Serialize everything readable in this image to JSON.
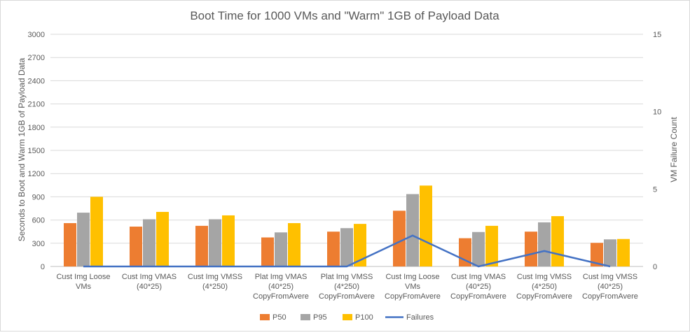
{
  "chart_data": {
    "type": "bar",
    "title": "Boot Time for 1000 VMs and \"Warm\" 1GB of Payload Data",
    "ylabel": "Seconds to Boot and Warm 1GB of Payload Data",
    "y2label": "VM Failure Count",
    "ylim": [
      0,
      3000
    ],
    "y2lim": [
      0,
      15
    ],
    "yticks": [
      "0",
      "300",
      "600",
      "900",
      "1200",
      "1500",
      "1800",
      "2100",
      "2400",
      "2700",
      "3000"
    ],
    "y2ticks": [
      "0",
      "5",
      "10",
      "15"
    ],
    "grid": true,
    "legend_position": "bottom",
    "categories": [
      [
        "Cust Img Loose",
        "VMs"
      ],
      [
        "Cust Img VMAS",
        "(40*25)"
      ],
      [
        "Cust Img VMSS",
        "(4*250)"
      ],
      [
        "Plat Img VMAS",
        "(40*25)",
        "CopyFromAvere"
      ],
      [
        "Plat Img VMSS",
        "(4*250)",
        "CopyFromAvere"
      ],
      [
        "Cust Img Loose",
        "VMs",
        "CopyFromAvere"
      ],
      [
        "Cust Img VMAS",
        "(40*25)",
        "CopyFromAvere"
      ],
      [
        "Cust Img VMSS",
        "(4*250)",
        "CopyFromAvere"
      ],
      [
        "Cust Img VMSS",
        "(40*25)",
        "CopyFromAvere"
      ]
    ],
    "series": [
      {
        "name": "P50",
        "kind": "bar",
        "color": "#ED7D31",
        "axis": "left",
        "values": [
          560,
          515,
          525,
          375,
          450,
          720,
          365,
          450,
          305
        ]
      },
      {
        "name": "P95",
        "kind": "bar",
        "color": "#A5A5A5",
        "axis": "left",
        "values": [
          695,
          610,
          610,
          440,
          495,
          935,
          445,
          570,
          350
        ]
      },
      {
        "name": "P100",
        "kind": "bar",
        "color": "#FFC000",
        "axis": "left",
        "values": [
          900,
          705,
          660,
          560,
          550,
          1045,
          525,
          650,
          355
        ]
      },
      {
        "name": "Failures",
        "kind": "line",
        "color": "#4472C4",
        "axis": "right",
        "values": [
          0,
          0,
          0,
          0,
          0,
          2,
          0,
          1,
          0
        ]
      }
    ]
  }
}
